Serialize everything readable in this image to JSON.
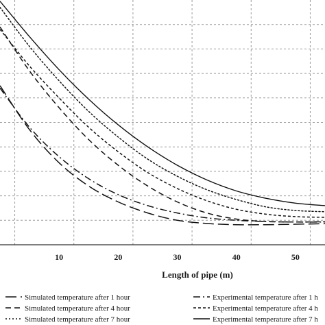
{
  "chart_data": {
    "type": "line",
    "xlabel": "Length of pipe (m)",
    "ylabel": "",
    "xlim": [
      0,
      55
    ],
    "ylim": [
      0,
      10
    ],
    "x_ticks": [
      10,
      20,
      30,
      40,
      50
    ],
    "grid": true,
    "legend_position": "bottom",
    "series": [
      {
        "name": "Simulated temperature after 1 hour",
        "style": "long-dash",
        "x": [
          0,
          5,
          10,
          15,
          20,
          25,
          30,
          35,
          40,
          45,
          50,
          55
        ],
        "y": [
          6.5,
          4.7,
          3.35,
          2.4,
          1.75,
          1.3,
          1.0,
          0.87,
          0.82,
          0.82,
          0.84,
          0.86
        ]
      },
      {
        "name": "Simulated temperature after 4 hour",
        "style": "dash",
        "x": [
          0,
          5,
          10,
          15,
          20,
          25,
          30,
          35,
          40,
          45,
          50,
          55
        ],
        "y": [
          8.9,
          7.1,
          5.6,
          4.3,
          3.25,
          2.4,
          1.75,
          1.3,
          1.05,
          0.95,
          0.93,
          0.94
        ]
      },
      {
        "name": "Simulated temperature after 7 hour",
        "style": "dot",
        "x": [
          0,
          5,
          10,
          15,
          20,
          25,
          30,
          35,
          40,
          45,
          50,
          55
        ],
        "y": [
          9.7,
          8.1,
          6.7,
          5.45,
          4.4,
          3.5,
          2.8,
          2.25,
          1.85,
          1.55,
          1.4,
          1.35
        ]
      },
      {
        "name": "Experimental temperature after 1 h",
        "style": "dash-dot",
        "x": [
          0,
          5,
          10,
          15,
          20,
          25,
          30,
          35,
          40,
          45,
          50,
          55
        ],
        "y": [
          6.4,
          4.8,
          3.6,
          2.7,
          2.05,
          1.6,
          1.3,
          1.1,
          1.0,
          0.95,
          0.93,
          0.93
        ]
      },
      {
        "name": "Experimental temperature after 4 h",
        "style": "short-dash",
        "x": [
          0,
          5,
          10,
          15,
          20,
          25,
          30,
          35,
          40,
          45,
          50,
          55
        ],
        "y": [
          8.8,
          7.3,
          6.0,
          4.8,
          3.8,
          2.95,
          2.3,
          1.8,
          1.45,
          1.25,
          1.15,
          1.12
        ]
      },
      {
        "name": "Experimental temperature after 7 h",
        "style": "solid",
        "x": [
          0,
          5,
          10,
          15,
          20,
          25,
          30,
          35,
          40,
          45,
          50,
          55
        ],
        "y": [
          9.95,
          8.5,
          7.15,
          5.95,
          4.9,
          4.0,
          3.25,
          2.65,
          2.2,
          1.9,
          1.7,
          1.6
        ]
      }
    ]
  }
}
